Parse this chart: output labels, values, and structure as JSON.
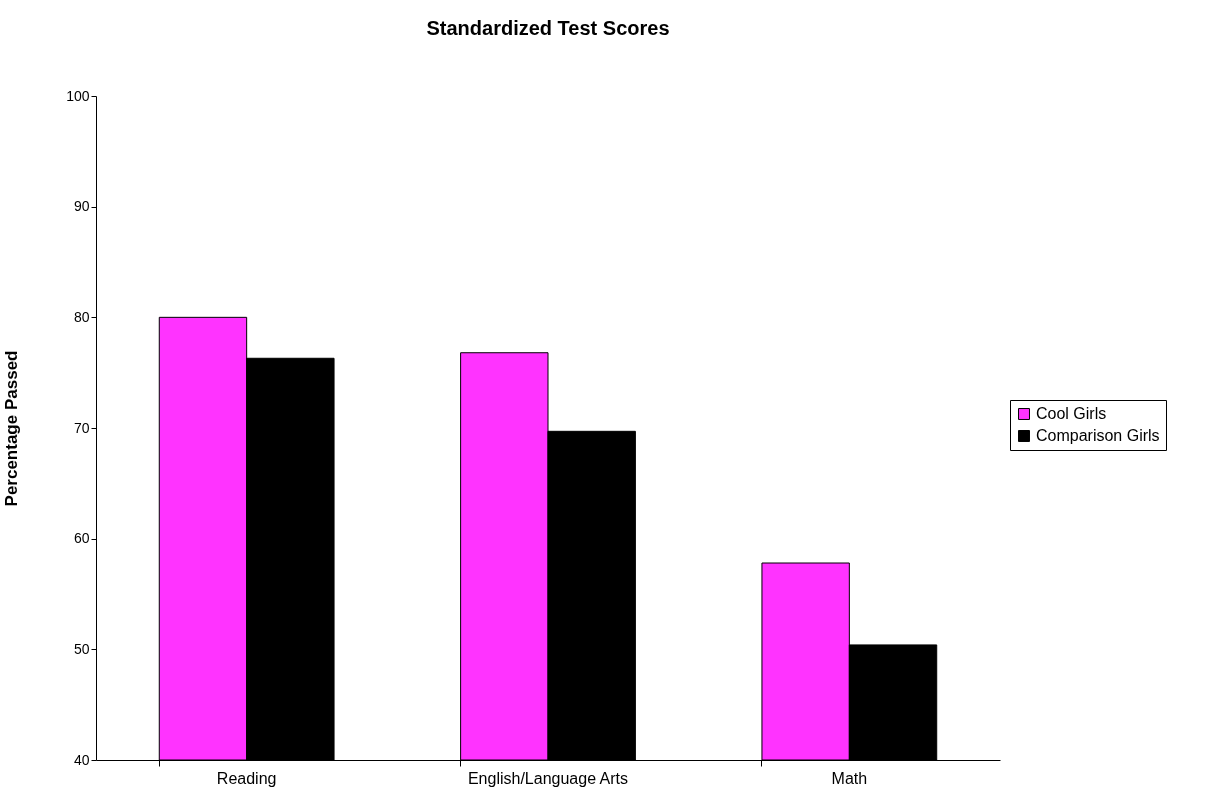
{
  "chart_data": {
    "type": "bar",
    "title": "Standardized Test Scores",
    "ylabel": "Percentage Passed",
    "categories": [
      "Reading",
      "English/Language Arts",
      "Math"
    ],
    "series": [
      {
        "name": "Cool Girls",
        "color": "#ff33ff",
        "values": [
          80.0,
          76.8,
          57.8
        ]
      },
      {
        "name": "Comparison Girls",
        "color": "#000000",
        "values": [
          76.3,
          69.7,
          50.4
        ]
      }
    ],
    "ylim": [
      40,
      100
    ],
    "yticks": [
      40,
      50,
      60,
      70,
      80,
      90,
      100
    ],
    "grid": false,
    "legend": "right"
  }
}
